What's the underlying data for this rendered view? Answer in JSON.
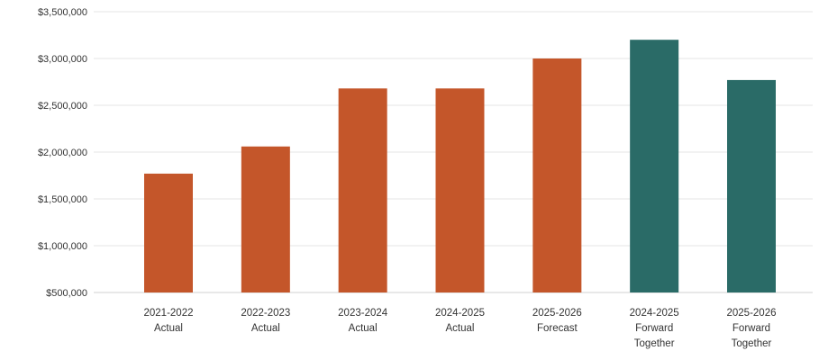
{
  "chart_data": {
    "type": "bar",
    "categories": [
      [
        "2021-2022",
        "Actual"
      ],
      [
        "2022-2023",
        "Actual"
      ],
      [
        "2023-2024",
        "Actual"
      ],
      [
        "2024-2025",
        "Actual"
      ],
      [
        "2025-2026",
        "Forecast"
      ],
      [
        "2024-2025",
        "Forward",
        "Together"
      ],
      [
        "2025-2026",
        "Forward",
        "Together"
      ]
    ],
    "values": [
      1770000,
      2060000,
      2680000,
      2680000,
      3000000,
      3200000,
      2770000
    ],
    "bar_colors": [
      "#c4562a",
      "#c4562a",
      "#c4562a",
      "#c4562a",
      "#c4562a",
      "#2a6b67",
      "#2a6b67"
    ],
    "ylim": [
      500000,
      3500000
    ],
    "yticks": [
      500000,
      1000000,
      1500000,
      2000000,
      2500000,
      3000000,
      3500000
    ],
    "ytick_labels": [
      "$500,000",
      "$1,000,000",
      "$1,500,000",
      "$2,000,000",
      "$2,500,000",
      "$3,000,000",
      "$3,500,000"
    ],
    "grid": true,
    "legend": "none"
  }
}
